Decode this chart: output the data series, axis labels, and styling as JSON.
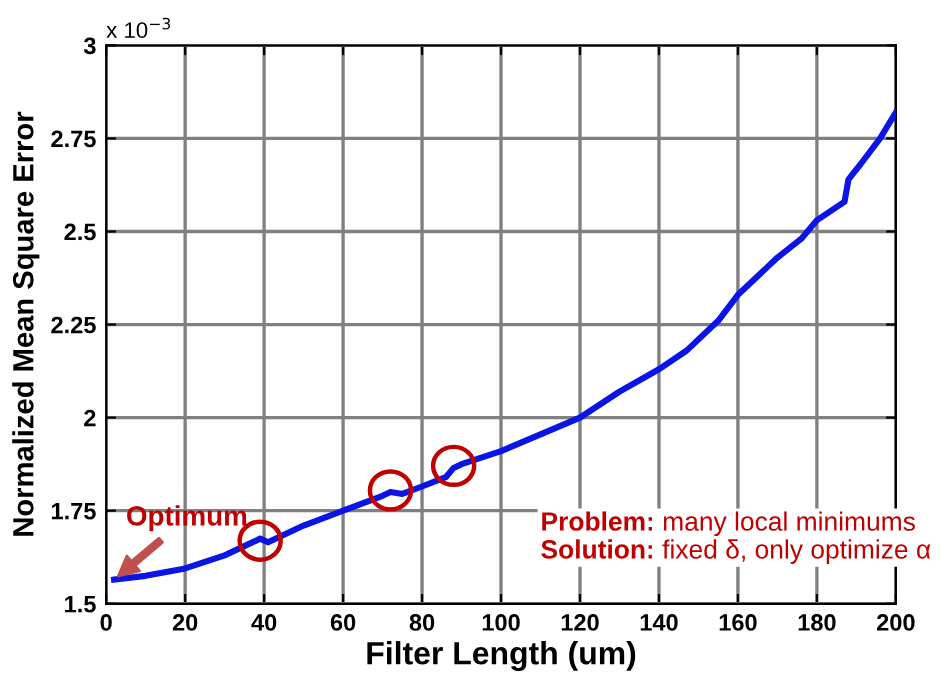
{
  "chart_data": {
    "type": "line",
    "xlabel": "Filter Length (um)",
    "ylabel": "Normalized Mean Square Error",
    "x": [
      2,
      10,
      20,
      30,
      39,
      41,
      50,
      60,
      70,
      72,
      75,
      80,
      86,
      88,
      90,
      100,
      110,
      120,
      130,
      140,
      147,
      155,
      160,
      170,
      176,
      180,
      187,
      188,
      191,
      196,
      200
    ],
    "series": [
      {
        "color": "#0a14e6",
        "values": [
          1.565,
          1.575,
          1.595,
          1.63,
          1.675,
          1.665,
          1.71,
          1.75,
          1.79,
          1.8,
          1.795,
          1.815,
          1.84,
          1.865,
          1.875,
          1.91,
          1.955,
          2.0,
          2.07,
          2.13,
          2.18,
          2.26,
          2.33,
          2.43,
          2.48,
          2.53,
          2.58,
          2.64,
          2.68,
          2.75,
          2.82
        ]
      }
    ],
    "xlim": [
      0,
      200
    ],
    "ylim": [
      1.5,
      3
    ],
    "xticks": [
      0,
      20,
      40,
      60,
      80,
      100,
      120,
      140,
      160,
      180,
      200
    ],
    "yticks": [
      1.5,
      1.75,
      2,
      2.25,
      2.5,
      2.75,
      3
    ],
    "grid": true,
    "marker": "none",
    "line_style": "solid",
    "annotations": [
      "x 10$^{−3}$",
      {
        "text": "Optimum",
        "x": 2,
        "y": 1.565
      },
      "Problem: many local minimums",
      "Solution: fixed δ, only optimize α"
    ]
  }
}
